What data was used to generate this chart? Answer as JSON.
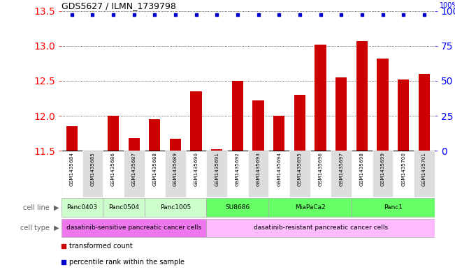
{
  "title": "GDS5627 / ILMN_1739798",
  "samples": [
    "GSM1435684",
    "GSM1435685",
    "GSM1435686",
    "GSM1435687",
    "GSM1435688",
    "GSM1435689",
    "GSM1435690",
    "GSM1435691",
    "GSM1435692",
    "GSM1435693",
    "GSM1435694",
    "GSM1435695",
    "GSM1435696",
    "GSM1435697",
    "GSM1435698",
    "GSM1435699",
    "GSM1435700",
    "GSM1435701"
  ],
  "bar_values": [
    11.85,
    11.5,
    12.0,
    11.68,
    11.95,
    11.67,
    12.35,
    11.52,
    12.5,
    12.22,
    12.0,
    12.3,
    13.02,
    12.55,
    13.07,
    12.82,
    12.52,
    12.6
  ],
  "percentile_values": [
    100,
    100,
    100,
    100,
    100,
    100,
    100,
    100,
    100,
    100,
    100,
    100,
    100,
    100,
    100,
    100,
    100,
    100
  ],
  "ylim_left": [
    11.5,
    13.5
  ],
  "ylim_right": [
    0,
    100
  ],
  "yticks_left": [
    11.5,
    12.0,
    12.5,
    13.0,
    13.5
  ],
  "yticks_right": [
    0,
    25,
    50,
    75,
    100
  ],
  "bar_color": "#cc0000",
  "percentile_color": "#0000cc",
  "cell_line_groups": [
    {
      "name": "Panc0403",
      "start": 0,
      "end": 1,
      "color": "#ccffcc"
    },
    {
      "name": "Panc0504",
      "start": 2,
      "end": 3,
      "color": "#ccffcc"
    },
    {
      "name": "Panc1005",
      "start": 4,
      "end": 6,
      "color": "#ccffcc"
    },
    {
      "name": "SU8686",
      "start": 7,
      "end": 9,
      "color": "#66ff66"
    },
    {
      "name": "MiaPaCa2",
      "start": 10,
      "end": 13,
      "color": "#66ff66"
    },
    {
      "name": "Panc1",
      "start": 14,
      "end": 17,
      "color": "#66ff66"
    }
  ],
  "cell_type_groups": [
    {
      "name": "dasatinib-sensitive pancreatic cancer cells",
      "start": 0,
      "end": 6,
      "color": "#ee77ee"
    },
    {
      "name": "dasatinib-resistant pancreatic cancer cells",
      "start": 7,
      "end": 17,
      "color": "#ffbbff"
    }
  ],
  "legend_items": [
    {
      "label": "transformed count",
      "color": "#cc0000"
    },
    {
      "label": "percentile rank within the sample",
      "color": "#0000cc"
    }
  ]
}
